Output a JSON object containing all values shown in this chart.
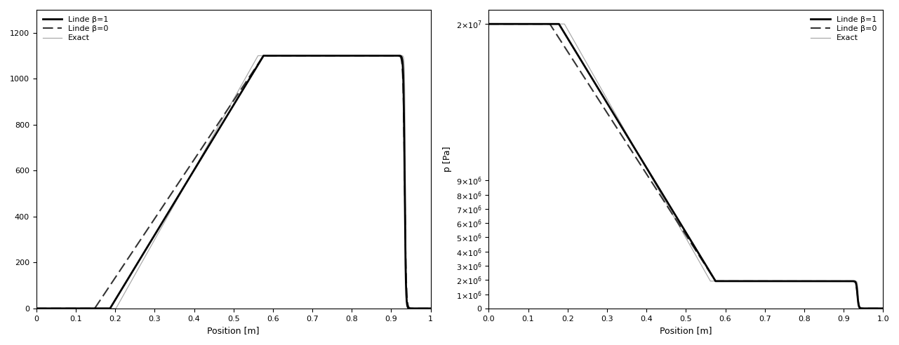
{
  "xlabel": "Position [m]",
  "ylabel_right": "p [Pa]",
  "xlim": [
    0,
    1.0
  ],
  "ylim_left": [
    0,
    1300
  ],
  "ylim_right": [
    0,
    21000000.0
  ],
  "xticks": [
    0,
    0.1,
    0.2,
    0.3,
    0.4,
    0.5,
    0.6,
    0.7,
    0.8,
    0.9,
    1.0
  ],
  "yticks_left": [
    0,
    200,
    400,
    600,
    800,
    1000,
    1200
  ],
  "yticks_right": [
    0,
    1000000.0,
    2000000.0,
    3000000.0,
    4000000.0,
    5000000.0,
    6000000.0,
    7000000.0,
    8000000.0,
    9000000.0,
    20000000.0
  ],
  "ytick_labels_right": [
    "0",
    "1x10^6",
    "2x10^6",
    "3x10^6",
    "4x10^6",
    "5x10^6",
    "6x10^6",
    "7x10^6",
    "8x10^6",
    "9x10^6",
    "2x10^7"
  ],
  "background_color": "#ffffff",
  "color_b1": "#000000",
  "color_b0": "#333333",
  "color_exact": "#aaaaaa",
  "lw_b1": 2.0,
  "lw_b0": 1.5,
  "lw_exact": 0.9,
  "legend_labels": [
    "Linde β=1",
    "Linde β=0",
    "Exact"
  ]
}
